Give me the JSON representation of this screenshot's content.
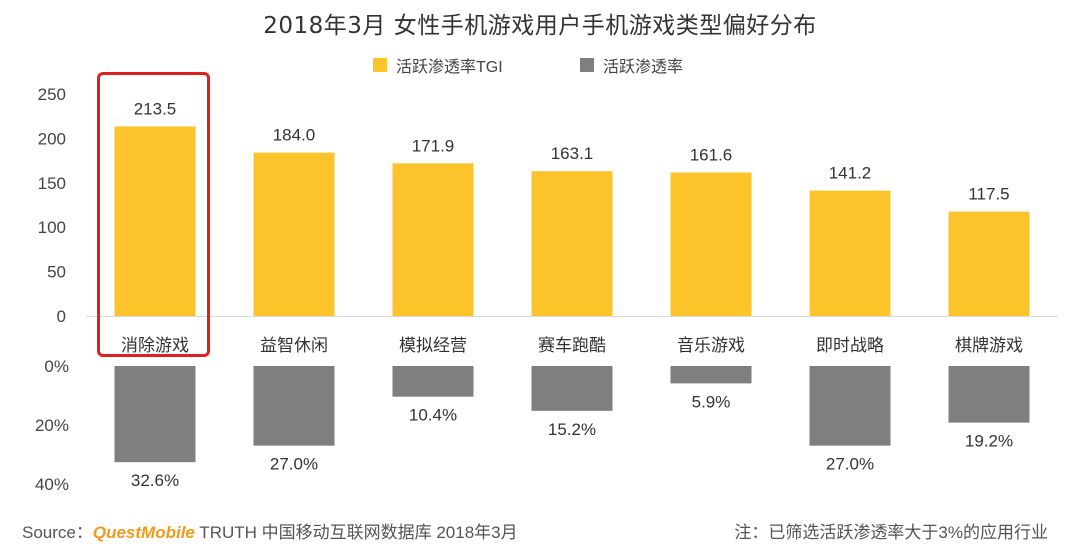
{
  "chart_data": {
    "type": "bar",
    "title": "2018年3月 女性手机游戏用户手机游戏类型偏好分布",
    "categories": [
      "消除游戏",
      "益智休闲",
      "模拟经营",
      "赛车跑酷",
      "音乐游戏",
      "即时战略",
      "棋牌游戏"
    ],
    "series": [
      {
        "name": "活跃渗透率TGI",
        "values": [
          213.5,
          184.0,
          171.9,
          163.1,
          161.6,
          141.2,
          117.5
        ],
        "labels": [
          "213.5",
          "184.0",
          "171.9",
          "163.1",
          "161.6",
          "141.2",
          "117.5"
        ],
        "color": "#fcc32b",
        "ylim": [
          0,
          250
        ],
        "yticks": [
          "250",
          "200",
          "150",
          "100",
          "50",
          "0"
        ]
      },
      {
        "name": "活跃渗透率",
        "values": [
          32.6,
          27.0,
          10.4,
          15.2,
          5.9,
          27.0,
          19.2
        ],
        "labels": [
          "32.6%",
          "27.0%",
          "10.4%",
          "15.2%",
          "5.9%",
          "27.0%",
          "19.2%"
        ],
        "color": "#7f7f7f",
        "ylim": [
          0,
          40
        ],
        "yticks": [
          "0%",
          "20%",
          "40%"
        ],
        "inverted": true
      }
    ],
    "highlight_category": "消除游戏",
    "legend_position": "top-center",
    "grid": false
  },
  "footer": {
    "source_prefix": "Source：",
    "source_brand": "QuestMobile",
    "source_rest": " TRUTH 中国移动互联网数据库 2018年3月",
    "note": "注：已筛选活跃渗透率大于3%的应用行业"
  }
}
